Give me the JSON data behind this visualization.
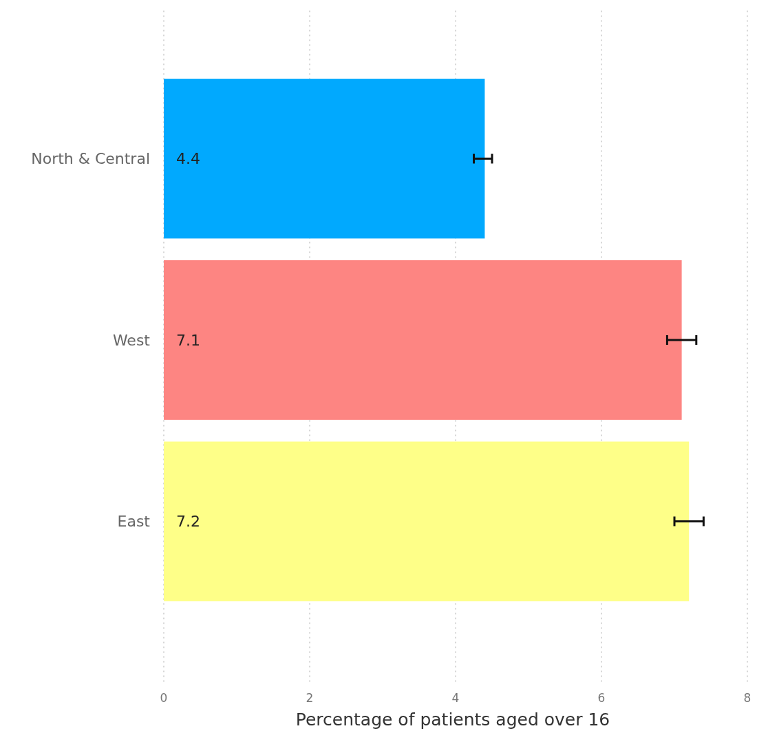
{
  "chart_data": {
    "type": "bar",
    "orientation": "horizontal",
    "xlabel": "Percentage of patients aged over 16",
    "categories": [
      "North & Central",
      "West",
      "East"
    ],
    "values": [
      4.4,
      7.1,
      7.2
    ],
    "colors": [
      "#01a9fe",
      "#fd8582",
      "#feff88"
    ],
    "errors": [
      [
        4.25,
        4.5
      ],
      [
        6.9,
        7.3
      ],
      [
        7.0,
        7.4
      ]
    ],
    "xlim": [
      0,
      8
    ],
    "xticks": [
      0,
      2,
      4,
      6,
      8
    ],
    "grid": "x",
    "data_labels": true
  }
}
